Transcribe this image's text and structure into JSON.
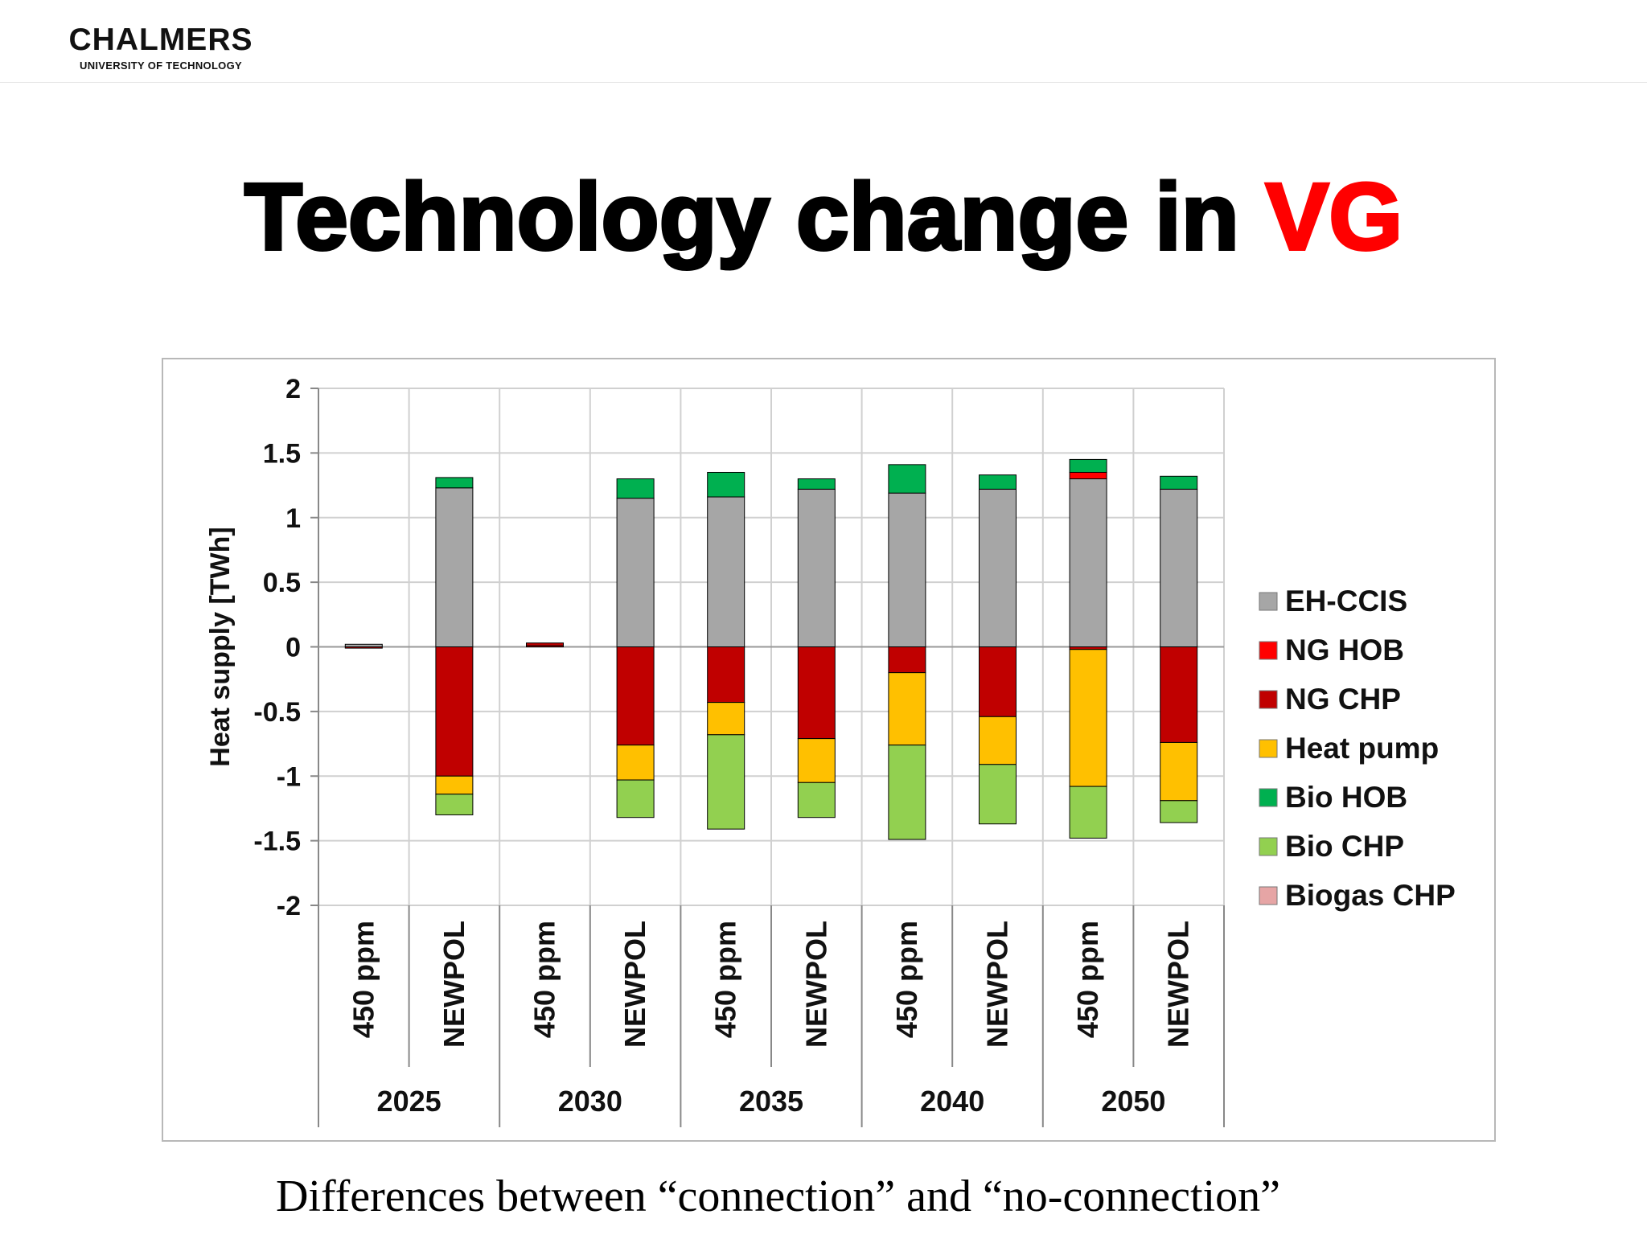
{
  "header": {
    "logo_name": "CHALMERS",
    "logo_sub": "UNIVERSITY OF TECHNOLOGY"
  },
  "slide": {
    "title_main": "Technology change in ",
    "title_accent": "VG",
    "caption": "Differences between “connection” and “no-connection”"
  },
  "colors": {
    "title_accent": "#ff0000"
  },
  "chart_data": {
    "type": "bar",
    "stacked": true,
    "ylabel": "Heat supply [TWh]",
    "ylim": [
      -2,
      2
    ],
    "yticks": [
      2,
      1.5,
      1,
      0.5,
      0,
      -0.5,
      -1,
      -1.5,
      -2
    ],
    "grid": true,
    "legend_position": "right",
    "groups": [
      "2025",
      "2030",
      "2035",
      "2040",
      "2050"
    ],
    "scenarios": [
      "450 ppm",
      "NEWPOL"
    ],
    "categories": [
      "450 ppm",
      "NEWPOL",
      "450 ppm",
      "NEWPOL",
      "450 ppm",
      "NEWPOL",
      "450 ppm",
      "NEWPOL",
      "450 ppm",
      "NEWPOL"
    ],
    "series": [
      {
        "name": "EH-CCIS",
        "color": "#a6a6a6",
        "values": [
          0.02,
          1.23,
          0.0,
          1.15,
          1.16,
          1.22,
          1.19,
          1.22,
          1.3,
          1.22
        ]
      },
      {
        "name": "NG HOB",
        "color": "#ff0000",
        "values": [
          0.0,
          0.0,
          0.01,
          0.0,
          0.0,
          0.0,
          0.0,
          0.0,
          0.05,
          0.0
        ]
      },
      {
        "name": "NG CHP",
        "color": "#c00000",
        "values": [
          -0.01,
          -1.0,
          0.02,
          -0.76,
          -0.43,
          -0.71,
          -0.2,
          -0.54,
          -0.02,
          -0.74
        ]
      },
      {
        "name": "Heat pump",
        "color": "#ffc000",
        "values": [
          0.0,
          -0.14,
          0.0,
          -0.27,
          -0.25,
          -0.34,
          -0.56,
          -0.37,
          -1.06,
          -0.45
        ]
      },
      {
        "name": "Bio HOB",
        "color": "#00b050",
        "values": [
          0.0,
          0.08,
          0.0,
          0.15,
          0.19,
          0.08,
          0.22,
          0.11,
          0.1,
          0.1
        ]
      },
      {
        "name": "Bio CHP",
        "color": "#92d050",
        "values": [
          0.0,
          -0.16,
          0.0,
          -0.29,
          -0.73,
          -0.27,
          -0.73,
          -0.46,
          -0.4,
          -0.17
        ]
      },
      {
        "name": "Biogas CHP",
        "color": "#e6a5a5",
        "values": [
          0.0,
          0.0,
          0.0,
          0.0,
          0.0,
          0.0,
          0.0,
          0.0,
          0.0,
          0.0
        ]
      }
    ]
  }
}
